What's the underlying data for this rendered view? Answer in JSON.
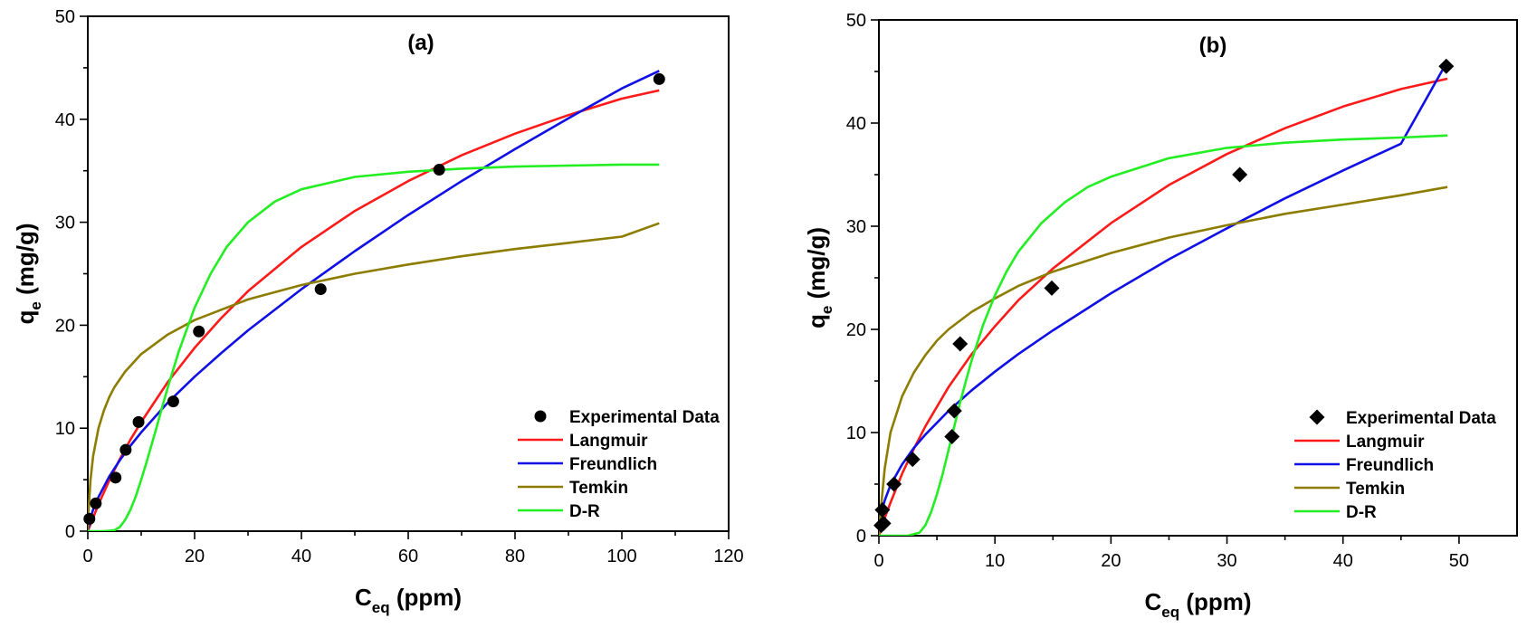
{
  "colors": {
    "langmuir": "#ff1a1a",
    "freundlich": "#1010e6",
    "temkin": "#8c7d00",
    "dr": "#22ee22",
    "marker": "#000000"
  },
  "chart_data": [
    {
      "type": "scatter",
      "panel": "a",
      "title": "(a)",
      "xlabel": {
        "main": "C",
        "sub": "eq",
        "rest": " (ppm)"
      },
      "ylabel": {
        "main": "q",
        "sub": "e",
        "rest": " (mg/g)"
      },
      "xlim": [
        0,
        120
      ],
      "ylim": [
        0,
        50
      ],
      "xticks": [
        0,
        20,
        40,
        60,
        80,
        100,
        120
      ],
      "yticks": [
        0,
        10,
        20,
        30,
        40,
        50
      ],
      "grid": false,
      "legend_position": "bottom-right",
      "marker_shape": "circle",
      "experimental": {
        "name": "Experimental Data",
        "x": [
          0.3,
          1.5,
          5.2,
          7.1,
          9.5,
          16.0,
          20.8,
          43.6,
          65.8,
          107.0
        ],
        "y": [
          1.2,
          2.7,
          5.2,
          7.9,
          10.6,
          12.6,
          19.4,
          23.5,
          35.1,
          43.9
        ]
      },
      "series": [
        {
          "name": "Langmuir",
          "color_key": "langmuir",
          "x": [
            0,
            1,
            2,
            4,
            6,
            8,
            10,
            15,
            20,
            25,
            30,
            40,
            50,
            60,
            70,
            80,
            90,
            100,
            107
          ],
          "y": [
            0,
            1.3,
            2.6,
            4.9,
            7.0,
            8.9,
            10.6,
            14.5,
            17.8,
            20.7,
            23.3,
            27.6,
            31.1,
            34.0,
            36.5,
            38.6,
            40.4,
            42.0,
            42.8
          ]
        },
        {
          "name": "Freundlich",
          "color_key": "freundlich",
          "x": [
            0,
            0.5,
            1,
            2,
            4,
            6,
            8,
            10,
            15,
            20,
            25,
            30,
            40,
            50,
            60,
            70,
            80,
            90,
            100,
            107
          ],
          "y": [
            0,
            1.3,
            2.1,
            3.3,
            5.3,
            6.9,
            8.3,
            9.6,
            12.5,
            15.0,
            17.3,
            19.5,
            23.5,
            27.2,
            30.7,
            34.0,
            37.1,
            40.1,
            43.0,
            44.7
          ]
        },
        {
          "name": "Temkin",
          "color_key": "temkin",
          "x": [
            0,
            0.2,
            0.5,
            1,
            2,
            3,
            4,
            5,
            7,
            10,
            15,
            20,
            30,
            40,
            50,
            60,
            70,
            80,
            90,
            100,
            107
          ],
          "y": [
            0,
            2.5,
            5.0,
            7.3,
            10.0,
            11.7,
            13.0,
            14.0,
            15.5,
            17.2,
            19.1,
            20.5,
            22.5,
            23.9,
            25.0,
            25.9,
            26.7,
            27.4,
            28.0,
            28.6,
            29.9
          ]
        },
        {
          "name": "D-R",
          "color_key": "dr",
          "x": [
            0,
            3,
            5,
            6,
            7,
            8,
            9,
            10,
            11,
            12,
            13,
            14,
            15,
            17,
            20,
            23,
            26,
            30,
            35,
            40,
            50,
            60,
            70,
            80,
            90,
            100,
            107
          ],
          "y": [
            0,
            0,
            0.1,
            0.4,
            1.1,
            2.1,
            3.4,
            5.0,
            6.7,
            8.5,
            10.3,
            12.2,
            14.0,
            17.4,
            21.7,
            25.0,
            27.6,
            30.0,
            32.0,
            33.2,
            34.4,
            34.9,
            35.2,
            35.4,
            35.5,
            35.6,
            35.6
          ]
        }
      ]
    },
    {
      "type": "scatter",
      "panel": "b",
      "title": "(b)",
      "xlabel": {
        "main": "C",
        "sub": "eq",
        "rest": " (ppm)"
      },
      "ylabel": {
        "main": "q",
        "sub": "e",
        "rest": " (mg/g)"
      },
      "xlim": [
        0,
        55
      ],
      "ylim": [
        0,
        50
      ],
      "xticks": [
        0,
        10,
        20,
        30,
        40,
        50
      ],
      "yticks": [
        0,
        10,
        20,
        30,
        40,
        50
      ],
      "grid": false,
      "legend_position": "bottom-right",
      "marker_shape": "diamond",
      "experimental": {
        "name": "Experimental Data",
        "x": [
          0.2,
          0.3,
          0.4,
          1.3,
          2.9,
          6.3,
          6.5,
          7.0,
          14.9,
          31.1,
          48.9
        ],
        "y": [
          1.0,
          2.5,
          1.2,
          5.0,
          7.4,
          9.6,
          12.1,
          18.6,
          24.0,
          35.0,
          45.5
        ]
      },
      "series": [
        {
          "name": "Langmuir",
          "color_key": "langmuir",
          "x": [
            0,
            0.5,
            1,
            2,
            3,
            4,
            6,
            8,
            10,
            12,
            15,
            20,
            25,
            30,
            35,
            40,
            45,
            49
          ],
          "y": [
            0,
            1.7,
            3.2,
            6.0,
            8.4,
            10.6,
            14.4,
            17.6,
            20.3,
            22.8,
            25.9,
            30.3,
            34.0,
            37.0,
            39.5,
            41.6,
            43.3,
            44.3
          ]
        },
        {
          "name": "Freundlich",
          "color_key": "freundlich",
          "x": [
            0,
            0.1,
            0.3,
            0.5,
            1,
            2,
            3,
            4,
            6,
            8,
            10,
            12,
            15,
            20,
            25,
            30,
            35,
            40,
            45,
            49
          ],
          "y": [
            0,
            1.2,
            2.6,
            3.4,
            4.9,
            6.9,
            8.5,
            9.8,
            12.1,
            14.1,
            15.9,
            17.6,
            19.9,
            23.5,
            26.8,
            29.8,
            32.7,
            35.4,
            38.0,
            46.0
          ]
        },
        {
          "name": "Temkin",
          "color_key": "temkin",
          "x": [
            0,
            0.2,
            0.5,
            1,
            2,
            3,
            4,
            5,
            6,
            8,
            10,
            12,
            15,
            20,
            25,
            30,
            35,
            40,
            45,
            49
          ],
          "y": [
            0,
            3.0,
            6.5,
            10.0,
            13.5,
            15.8,
            17.5,
            18.9,
            20.0,
            21.7,
            23.0,
            24.2,
            25.6,
            27.4,
            28.9,
            30.1,
            31.2,
            32.1,
            33.0,
            33.8
          ]
        },
        {
          "name": "D-R",
          "color_key": "dr",
          "x": [
            0,
            2.5,
            3.5,
            4,
            4.5,
            5,
            5.5,
            6,
            6.5,
            7,
            7.5,
            8,
            9,
            10,
            11,
            12,
            14,
            16,
            18,
            20,
            25,
            30,
            35,
            40,
            45,
            49
          ],
          "y": [
            0,
            0,
            0.3,
            1.0,
            2.3,
            4.0,
            6.0,
            8.3,
            10.6,
            12.9,
            15.0,
            17.0,
            20.5,
            23.3,
            25.6,
            27.5,
            30.3,
            32.3,
            33.8,
            34.8,
            36.6,
            37.6,
            38.1,
            38.4,
            38.6,
            38.8
          ]
        }
      ]
    }
  ]
}
